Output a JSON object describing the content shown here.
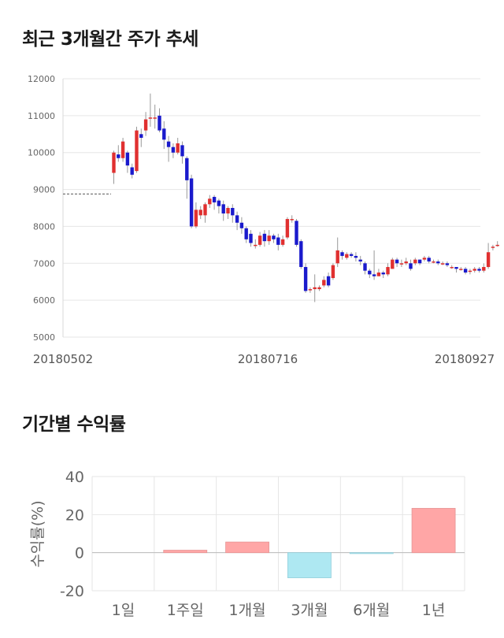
{
  "sections": {
    "price_title": "최근 3개월간 주가 추세",
    "return_title": "기간별 수익률"
  },
  "colors": {
    "up": "#e03030",
    "down": "#1a1acc",
    "bar_positive": "#ffa6a6",
    "bar_negative": "#aee8f2",
    "grid": "#e6e6e6"
  },
  "chart_data": [
    {
      "type": "candlestick",
      "title": "",
      "y_ticks": [
        "12000",
        "11000",
        "10000",
        "9000",
        "8000",
        "7000",
        "6000",
        "5000"
      ],
      "ylim": [
        5000,
        12000
      ],
      "x_tick_labels": [
        "20180502",
        "20180716",
        "20180927"
      ],
      "reference_line": 8880,
      "grid": true,
      "candles": [
        [
          9450,
          10000,
          9150,
          10050
        ],
        [
          9950,
          9850,
          9750,
          10200
        ],
        [
          9850,
          10300,
          9750,
          10400
        ],
        [
          10000,
          9650,
          9450,
          10050
        ],
        [
          9600,
          9400,
          9300,
          9700
        ],
        [
          9500,
          10600,
          9450,
          10700
        ],
        [
          10500,
          10400,
          10150,
          10650
        ],
        [
          10600,
          10900,
          10450,
          11100
        ],
        [
          10950,
          10950,
          10700,
          11600
        ],
        [
          10950,
          10950,
          10650,
          11300
        ],
        [
          11000,
          10600,
          10550,
          11200
        ],
        [
          10650,
          10350,
          10100,
          10850
        ],
        [
          10300,
          10150,
          9750,
          10450
        ],
        [
          10150,
          10000,
          9850,
          10250
        ],
        [
          10000,
          10250,
          9950,
          10400
        ],
        [
          10200,
          9900,
          9700,
          10300
        ],
        [
          9850,
          9250,
          8750,
          9900
        ],
        [
          9300,
          8000,
          7950,
          9400
        ],
        [
          8000,
          8450,
          7950,
          8650
        ],
        [
          8300,
          8450,
          8200,
          8550
        ],
        [
          8300,
          8600,
          8100,
          8650
        ],
        [
          8600,
          8750,
          8500,
          8850
        ],
        [
          8800,
          8650,
          8450,
          8850
        ],
        [
          8700,
          8550,
          8350,
          8750
        ],
        [
          8600,
          8350,
          8150,
          8700
        ],
        [
          8350,
          8500,
          8200,
          8550
        ],
        [
          8500,
          8300,
          8100,
          8600
        ],
        [
          8300,
          8100,
          7900,
          8400
        ],
        [
          8100,
          7950,
          7800,
          8250
        ],
        [
          7950,
          7650,
          7550,
          8000
        ],
        [
          7800,
          7550,
          7450,
          7900
        ],
        [
          7500,
          7500,
          7400,
          7650
        ],
        [
          7500,
          7750,
          7450,
          7850
        ],
        [
          7800,
          7600,
          7450,
          7900
        ],
        [
          7600,
          7750,
          7500,
          7900
        ],
        [
          7750,
          7650,
          7550,
          7800
        ],
        [
          7700,
          7500,
          7350,
          7800
        ],
        [
          7500,
          7650,
          7450,
          7750
        ],
        [
          7700,
          8200,
          7650,
          8250
        ],
        [
          8200,
          8200,
          8100,
          8300
        ],
        [
          8150,
          7500,
          7450,
          8200
        ],
        [
          7600,
          6900,
          6850,
          7650
        ],
        [
          6900,
          6250,
          6200,
          7000
        ],
        [
          6300,
          6300,
          6200,
          6350
        ],
        [
          6300,
          6350,
          5950,
          6700
        ],
        [
          6300,
          6350,
          6250,
          6400
        ],
        [
          6400,
          6550,
          6350,
          6650
        ],
        [
          6650,
          6400,
          6350,
          6750
        ],
        [
          6600,
          6950,
          6550,
          7000
        ],
        [
          7000,
          7350,
          6900,
          7700
        ],
        [
          7300,
          7200,
          7100,
          7350
        ],
        [
          7150,
          7250,
          7100,
          7300
        ],
        [
          7250,
          7200,
          7150,
          7300
        ],
        [
          7200,
          7150,
          7050,
          7300
        ],
        [
          7100,
          7050,
          6950,
          7200
        ],
        [
          7000,
          6800,
          6700,
          7050
        ],
        [
          6800,
          6700,
          6600,
          6850
        ],
        [
          6700,
          6650,
          6550,
          7350
        ],
        [
          6650,
          6750,
          6650,
          6850
        ],
        [
          6750,
          6700,
          6600,
          6800
        ],
        [
          6700,
          6900,
          6650,
          7000
        ],
        [
          6850,
          7100,
          6850,
          7150
        ],
        [
          7100,
          7000,
          6900,
          7150
        ],
        [
          7000,
          7000,
          6900,
          7100
        ],
        [
          7000,
          7050,
          6950,
          7150
        ],
        [
          7000,
          6850,
          6800,
          7100
        ],
        [
          7000,
          7100,
          6950,
          7150
        ],
        [
          7100,
          7000,
          6950,
          7100
        ],
        [
          7100,
          7150,
          7050,
          7200
        ],
        [
          7150,
          7050,
          7000,
          7200
        ],
        [
          7050,
          7050,
          7000,
          7100
        ],
        [
          7050,
          7000,
          6950,
          7100
        ],
        [
          7000,
          7000,
          6950,
          7050
        ],
        [
          7000,
          6950,
          6900,
          7050
        ],
        [
          6900,
          6900,
          6850,
          6950
        ],
        [
          6900,
          6850,
          6750,
          6900
        ],
        [
          6850,
          6850,
          6800,
          6900
        ],
        [
          6850,
          6750,
          6700,
          6900
        ],
        [
          6800,
          6800,
          6700,
          6850
        ],
        [
          6800,
          6850,
          6750,
          6900
        ],
        [
          6850,
          6800,
          6750,
          6900
        ],
        [
          6800,
          6900,
          6750,
          7000
        ],
        [
          6900,
          7300,
          6850,
          7550
        ],
        [
          7450,
          7450,
          7350,
          7500
        ],
        [
          7500,
          7500,
          7450,
          7600
        ]
      ]
    },
    {
      "type": "bar",
      "title": "",
      "ylabel": "수익률(%)",
      "ylim": [
        -20,
        40
      ],
      "y_ticks": [
        40,
        20,
        0,
        -20
      ],
      "categories": [
        "1일",
        "1주일",
        "1개월",
        "3개월",
        "6개월",
        "1년"
      ],
      "values": [
        0.0,
        1.3,
        5.6,
        -13.2,
        -0.5,
        23.3
      ],
      "grid": true
    }
  ]
}
